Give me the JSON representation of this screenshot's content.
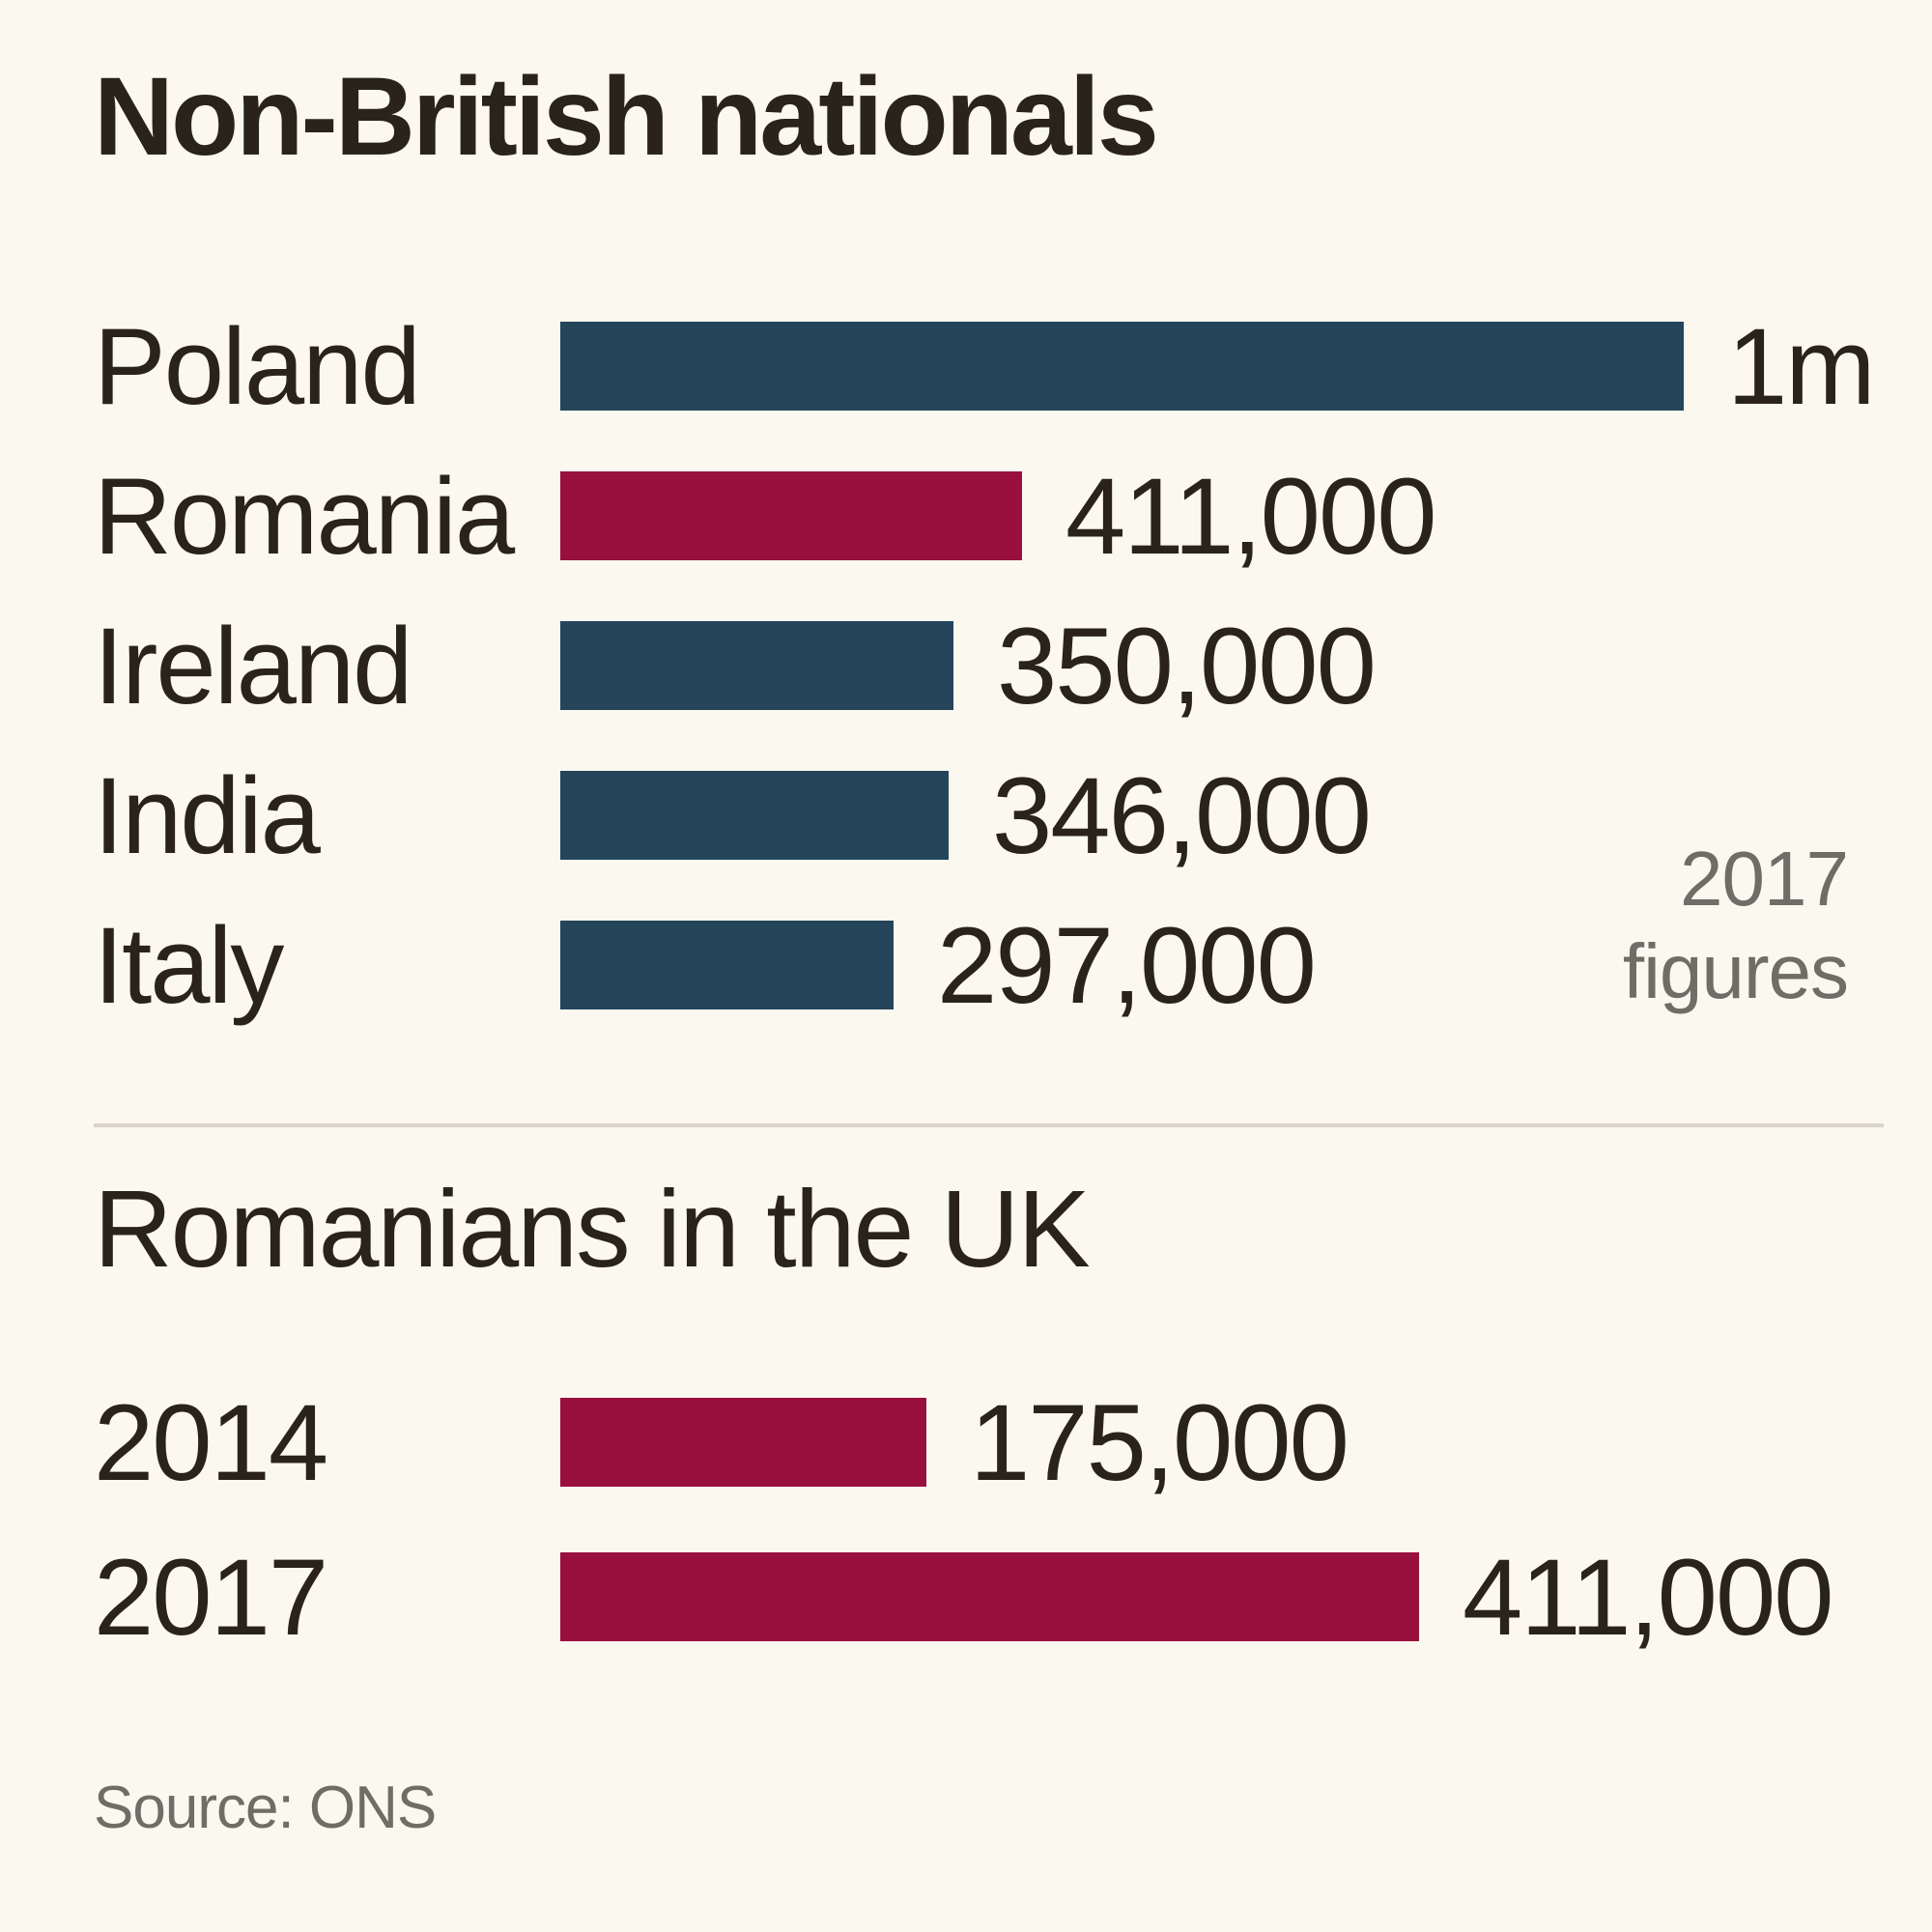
{
  "colors": {
    "navy": "#24455A",
    "claret": "#990F3D",
    "text": "#2A231C",
    "muted": "#6F6D65",
    "background": "#FBF8F0",
    "divider": "#D9D4C8"
  },
  "chart_data": [
    {
      "type": "bar",
      "orientation": "horizontal",
      "title": "Non-British nationals",
      "categories": [
        "Poland",
        "Romania",
        "Ireland",
        "India",
        "Italy"
      ],
      "values": [
        1000000,
        411000,
        350000,
        346000,
        297000
      ],
      "value_labels": [
        "1m",
        "411,000",
        "350,000",
        "346,000",
        "297,000"
      ],
      "bar_colors": [
        "navy",
        "claret",
        "navy",
        "navy",
        "navy"
      ],
      "xlim": [
        0,
        1000000
      ],
      "grid": false,
      "annotation_lines": [
        "2017",
        "figures"
      ]
    },
    {
      "type": "bar",
      "orientation": "horizontal",
      "title": "Romanians in the UK",
      "categories": [
        "2014",
        "2017"
      ],
      "values": [
        175000,
        411000
      ],
      "value_labels": [
        "175,000",
        "411,000"
      ],
      "bar_colors": [
        "claret",
        "claret"
      ],
      "xlim": [
        0,
        411000
      ],
      "grid": false
    }
  ],
  "source": "Source: ONS"
}
